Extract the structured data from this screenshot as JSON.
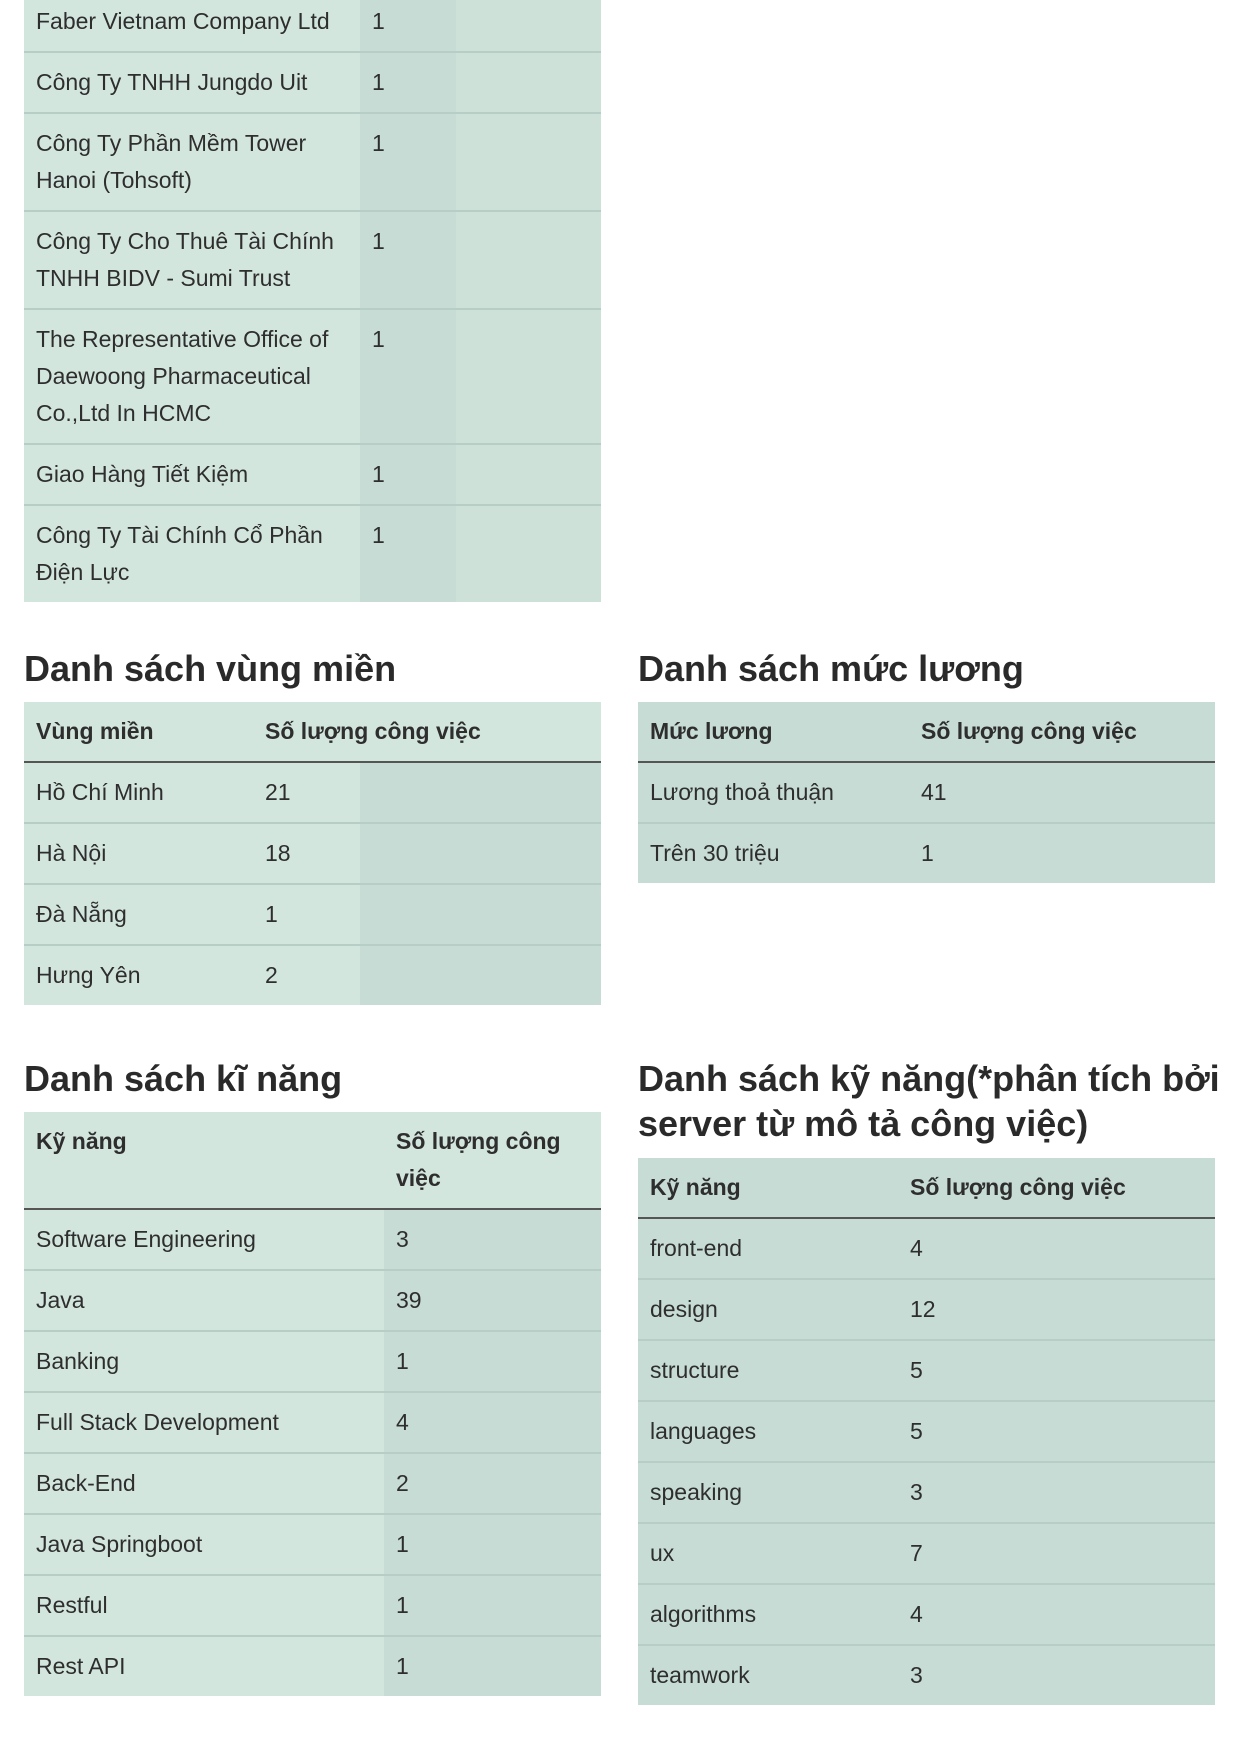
{
  "companies": {
    "rows": [
      [
        "Faber Vietnam Company Ltd",
        "1"
      ],
      [
        "Công Ty TNHH Jungdo Uit",
        "1"
      ],
      [
        "Công Ty Phần Mềm Tower Hanoi (Tohsoft)",
        "1"
      ],
      [
        "Công Ty Cho Thuê Tài Chính TNHH BIDV - Sumi Trust",
        "1"
      ],
      [
        "The Representative Office of Daewoong Pharmaceutical Co.,Ltd In HCMC",
        "1"
      ],
      [
        "Giao Hàng Tiết Kiệm",
        "1"
      ],
      [
        "Công Ty Tài Chính Cổ Phần Điện Lực",
        "1"
      ]
    ]
  },
  "regions": {
    "title": "Danh sách vùng miền",
    "headers": [
      "Vùng miền",
      "Số lượng công việc"
    ],
    "rows": [
      [
        "Hồ Chí Minh",
        "21"
      ],
      [
        "Hà Nội",
        "18"
      ],
      [
        "Đà Nẵng",
        "1"
      ],
      [
        "Hưng Yên",
        "2"
      ]
    ]
  },
  "salaries": {
    "title": "Danh sách mức lương",
    "headers": [
      "Mức lương",
      "Số lượng công việc"
    ],
    "rows": [
      [
        "Lương thoả thuận",
        "41"
      ],
      [
        "Trên 30 triệu",
        "1"
      ]
    ]
  },
  "skills": {
    "title": "Danh sách kĩ năng",
    "headers": [
      "Kỹ năng",
      "Số lượng công việc"
    ],
    "rows": [
      [
        "Software Engineering",
        "3"
      ],
      [
        "Java",
        "39"
      ],
      [
        "Banking",
        "1"
      ],
      [
        "Full Stack Development",
        "4"
      ],
      [
        "Back-End",
        "2"
      ],
      [
        "Java Springboot",
        "1"
      ],
      [
        "Restful",
        "1"
      ],
      [
        "Rest API",
        "1"
      ]
    ]
  },
  "skills_server": {
    "title": "Danh sách kỹ năng(*phân tích bởi server từ mô tả công việc)",
    "headers": [
      "Kỹ năng",
      "Số lượng công việc"
    ],
    "rows": [
      [
        "front-end",
        "4"
      ],
      [
        "design",
        "12"
      ],
      [
        "structure",
        "5"
      ],
      [
        "languages",
        "5"
      ],
      [
        "speaking",
        "3"
      ],
      [
        "ux",
        "7"
      ],
      [
        "algorithms",
        "4"
      ],
      [
        "teamwork",
        "3"
      ]
    ]
  }
}
